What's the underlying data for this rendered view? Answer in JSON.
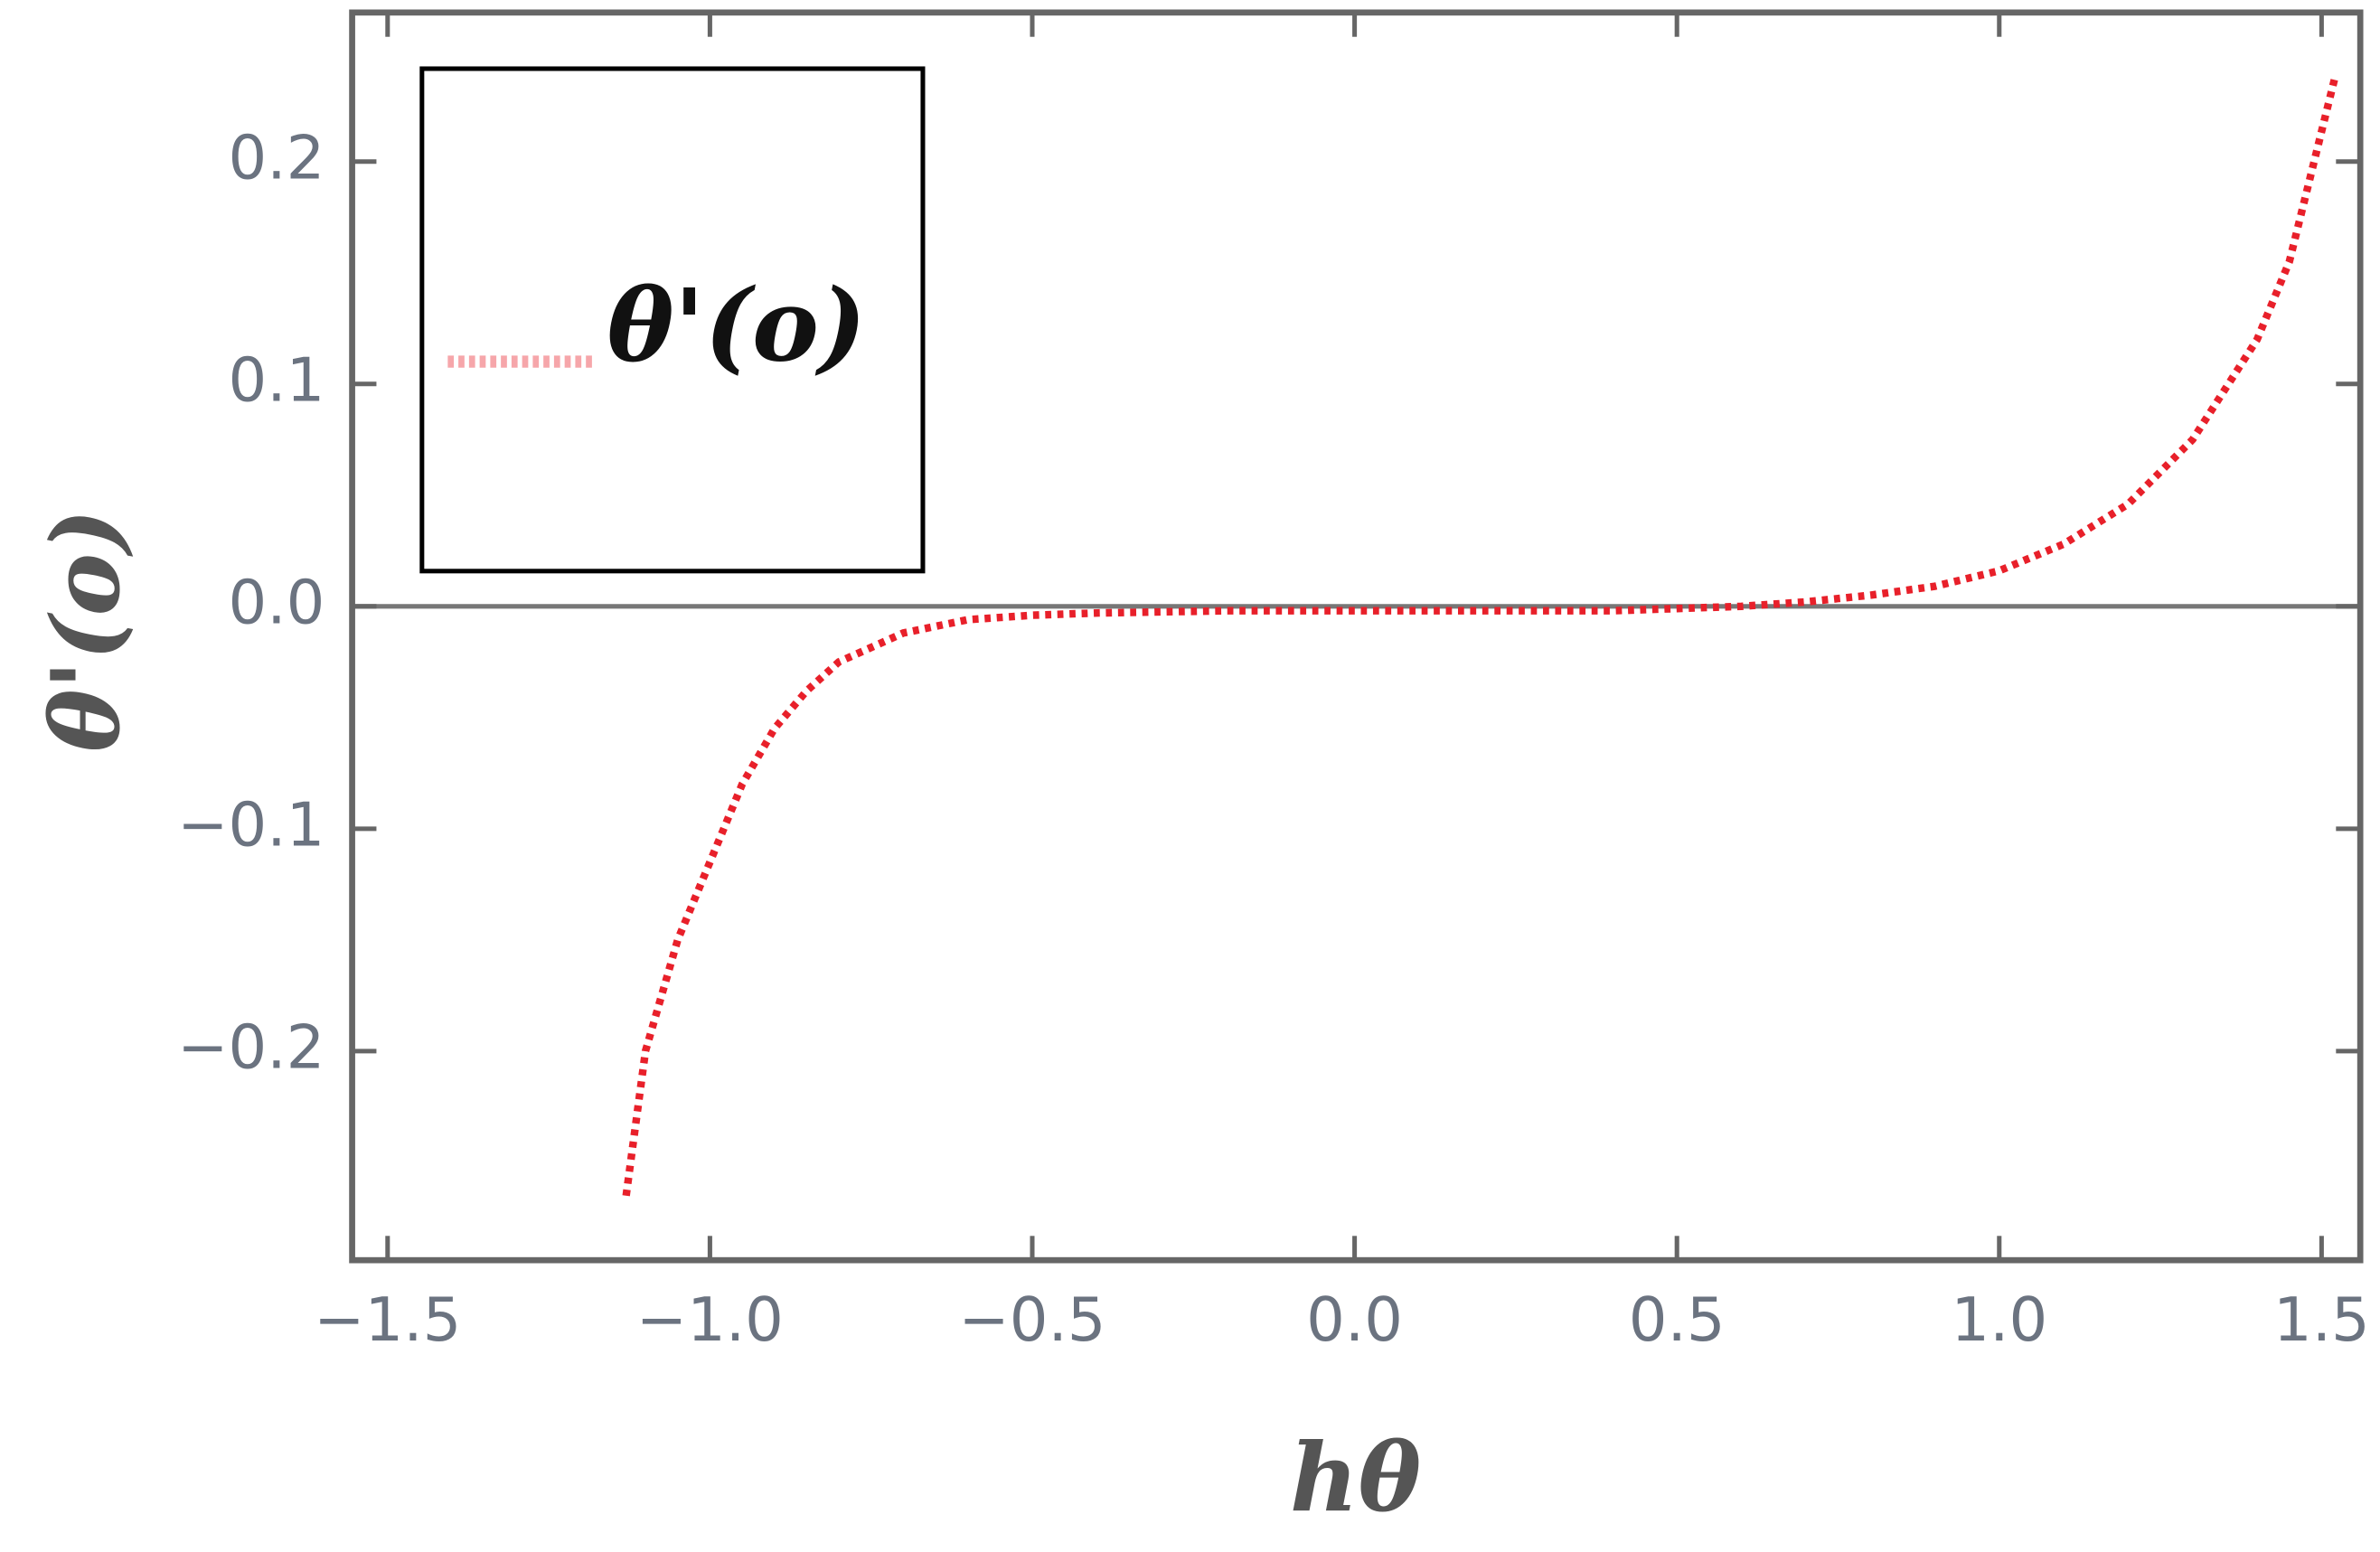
{
  "chart_data": {
    "type": "line",
    "x_label": "hθ",
    "y_label": "θ'(ο)",
    "x": [
      -1.13,
      -1.1,
      -1.05,
      -1.0,
      -0.95,
      -0.9,
      -0.85,
      -0.8,
      -0.7,
      -0.6,
      -0.5,
      -0.4,
      -0.2,
      0,
      0.2,
      0.4,
      0.5,
      0.6,
      0.7,
      0.8,
      0.9,
      1.0,
      1.1,
      1.2,
      1.3,
      1.4,
      1.45,
      1.52
    ],
    "series": [
      {
        "name": "θ'(ο)",
        "color": "#e8202a",
        "values": [
          -0.265,
          -0.2,
          -0.15,
          -0.115,
          -0.08,
          -0.055,
          -0.038,
          -0.025,
          -0.012,
          -0.006,
          -0.004,
          -0.003,
          -0.002,
          -0.002,
          -0.002,
          -0.002,
          -0.001,
          0,
          0.002,
          0.005,
          0.009,
          0.016,
          0.028,
          0.046,
          0.075,
          0.12,
          0.155,
          0.237
        ]
      }
    ],
    "xlim": [
      -1.555,
      1.56
    ],
    "ylim": [
      -0.294,
      0.267
    ],
    "xticks": [
      {
        "value": -1.5,
        "label": "−1.5"
      },
      {
        "value": -1.0,
        "label": "−1.0"
      },
      {
        "value": -0.5,
        "label": "−0.5"
      },
      {
        "value": 0,
        "label": "0.0"
      },
      {
        "value": 0.5,
        "label": "0.5"
      },
      {
        "value": 1.0,
        "label": "1.0"
      },
      {
        "value": 1.5,
        "label": "1.5"
      }
    ],
    "yticks": [
      {
        "value": -0.2,
        "label": "−0.2"
      },
      {
        "value": -0.1,
        "label": "−0.1"
      },
      {
        "value": 0,
        "label": "0.0"
      },
      {
        "value": 0.1,
        "label": "0.1"
      },
      {
        "value": 0.2,
        "label": "0.2"
      }
    ],
    "grid": false,
    "legend": "upper left"
  }
}
